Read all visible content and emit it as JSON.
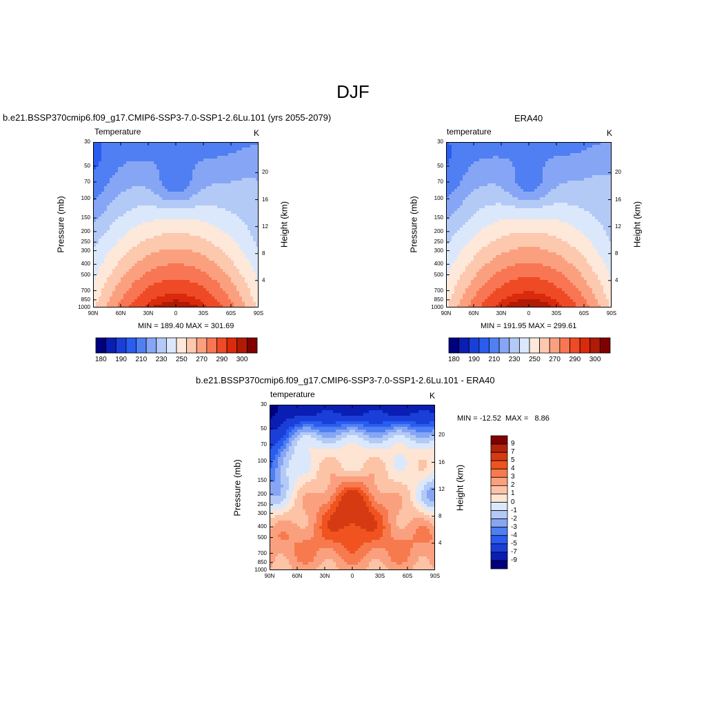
{
  "figure": {
    "title": "DJF",
    "panels": [
      {
        "id": "model",
        "caption": "b.e21.BSSP370cmip6.f09_g17.CMIP6-SSP3-7.0-SSP1-2.6Lu.101 (yrs 2055-2079)",
        "variable": "Temperature",
        "units": "K",
        "stats": "MIN = 189.40  MAX = 301.69"
      },
      {
        "id": "obs",
        "caption": "ERA40",
        "variable": "temperature",
        "units": "K",
        "stats": "MIN = 191.95  MAX = 299.61"
      },
      {
        "id": "diff",
        "caption": "b.e21.BSSP370cmip6.f09_g17.CMIP6-SSP3-7.0-SSP1-2.6Lu.101 - ERA40",
        "variable": "temperature",
        "units": "K",
        "stats": "MIN = -12.52  MAX =   8.86"
      }
    ],
    "y_left_title": "Pressure (mb)",
    "y_right_title": "Height (km)",
    "pressure_ticks": [
      "30",
      "50",
      "70",
      "100",
      "150",
      "200",
      "250",
      "300",
      "400",
      "500",
      "700",
      "850",
      "1000"
    ],
    "height_ticks": [
      "20",
      "16",
      "12",
      "8",
      "4"
    ],
    "lat_ticks": [
      "90N",
      "60N",
      "30N",
      "0",
      "30S",
      "60S",
      "90S"
    ],
    "abs_colorbar": {
      "colors": [
        "#00007f",
        "#0a1eb3",
        "#1a3fd9",
        "#2a5cf0",
        "#4f7ff2",
        "#86a6f5",
        "#b3caf7",
        "#dbe8fb",
        "#fde8da",
        "#fcc8ae",
        "#fba07f",
        "#f87654",
        "#ef4a26",
        "#d92a0c",
        "#b01a06",
        "#800000"
      ],
      "labels": [
        "180",
        "190",
        "210",
        "230",
        "250",
        "270",
        "290",
        "300"
      ]
    },
    "diff_colorbar": {
      "colors_top_to_bottom": [
        "#800000",
        "#b3230a",
        "#d63a12",
        "#f0531f",
        "#f77a4e",
        "#fba07f",
        "#fcc3a6",
        "#fee4d3",
        "#dbe8fb",
        "#b3caf7",
        "#86a6f5",
        "#4f7ff2",
        "#2a5cf0",
        "#1a3fd9",
        "#0a1eb3",
        "#00007f"
      ],
      "labels": [
        "9",
        "7",
        "5",
        "4",
        "3",
        "2",
        "1",
        "0",
        "-1",
        "-2",
        "-3",
        "-4",
        "-5",
        "-7",
        "-9"
      ]
    }
  },
  "chart_data": [
    {
      "type": "heatmap",
      "title": "b.e21.BSSP370cmip6.f09_g17.CMIP6-SSP3-7.0-SSP1-2.6Lu.101 (yrs 2055-2079)",
      "xlabel": "",
      "ylabel": "Pressure (mb)",
      "y2label": "Height (km)",
      "x_ticks": [
        "90N",
        "60N",
        "30N",
        "0",
        "30S",
        "60S",
        "90S"
      ],
      "y_ticks": [
        "30",
        "50",
        "70",
        "100",
        "150",
        "200",
        "250",
        "300",
        "400",
        "500",
        "700",
        "850",
        "1000"
      ],
      "y_scale": "log",
      "min": 189.4,
      "max": 301.69,
      "levels": [
        180,
        185,
        190,
        200,
        210,
        220,
        230,
        240,
        250,
        260,
        270,
        280,
        290,
        295,
        300
      ]
    },
    {
      "type": "heatmap",
      "title": "ERA40",
      "xlabel": "",
      "ylabel": "Pressure (mb)",
      "y2label": "Height (km)",
      "x_ticks": [
        "90N",
        "60N",
        "30N",
        "0",
        "30S",
        "60S",
        "90S"
      ],
      "y_ticks": [
        "30",
        "50",
        "70",
        "100",
        "150",
        "200",
        "250",
        "300",
        "400",
        "500",
        "700",
        "850",
        "1000"
      ],
      "y_scale": "log",
      "min": 191.95,
      "max": 299.61,
      "levels": [
        180,
        185,
        190,
        200,
        210,
        220,
        230,
        240,
        250,
        260,
        270,
        280,
        290,
        295,
        300
      ]
    },
    {
      "type": "heatmap",
      "title": "b.e21.BSSP370cmip6.f09_g17.CMIP6-SSP3-7.0-SSP1-2.6Lu.101 - ERA40",
      "xlabel": "",
      "ylabel": "Pressure (mb)",
      "y2label": "Height (km)",
      "x_ticks": [
        "90N",
        "60N",
        "30N",
        "0",
        "30S",
        "60S",
        "90S"
      ],
      "y_ticks": [
        "30",
        "50",
        "70",
        "100",
        "150",
        "200",
        "250",
        "300",
        "400",
        "500",
        "700",
        "850",
        "1000"
      ],
      "y_scale": "log",
      "min": -12.52,
      "max": 8.86,
      "levels": [
        -9,
        -7,
        -5,
        -4,
        -3,
        -2,
        -1,
        0,
        1,
        2,
        3,
        4,
        5,
        7,
        9
      ]
    }
  ]
}
